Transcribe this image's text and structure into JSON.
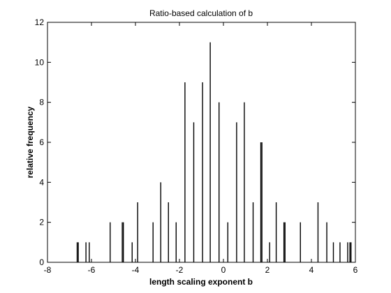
{
  "chart_data": {
    "type": "bar",
    "title": "Ratio-based calculation of b",
    "xlabel": "length scaling exponent b",
    "ylabel": "relative frequency",
    "xlim": [
      -8,
      6
    ],
    "ylim": [
      0,
      12
    ],
    "xticks": [
      "-8",
      "-6",
      "-4",
      "-2",
      "0",
      "2",
      "4",
      "6"
    ],
    "yticks": [
      "0",
      "2",
      "4",
      "6",
      "8",
      "10",
      "12"
    ],
    "grid": false,
    "legend": "none",
    "bar_color": "#000000",
    "x": [
      -6.65,
      -6.6,
      -6.25,
      -6.1,
      -5.15,
      -4.6,
      -4.55,
      -4.15,
      -3.9,
      -3.2,
      -2.85,
      -2.5,
      -2.15,
      -1.75,
      -1.35,
      -0.95,
      -0.6,
      -0.2,
      0.2,
      0.6,
      0.95,
      1.35,
      1.7,
      1.75,
      2.1,
      2.4,
      2.75,
      2.8,
      3.5,
      4.3,
      4.7,
      5.0,
      5.3,
      5.65,
      5.75,
      5.8
    ],
    "values": [
      1,
      1,
      1,
      1,
      2,
      2,
      2,
      1,
      3,
      2,
      4,
      3,
      2,
      9,
      7,
      9,
      11,
      8,
      2,
      7,
      8,
      3,
      6,
      6,
      1,
      3,
      2,
      2,
      2,
      3,
      2,
      1,
      1,
      1,
      1,
      1
    ]
  }
}
